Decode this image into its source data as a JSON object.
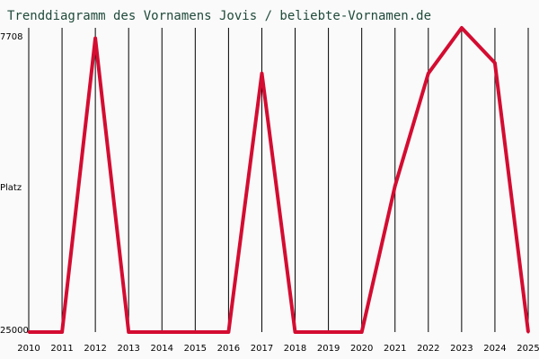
{
  "chart_data": {
    "type": "line",
    "title": "Trenddiagramm des Vornamens Jovis / beliebte-Vornamen.de",
    "ylabel": "Platz",
    "y_top_label": "7708",
    "y_bottom_label": "25000",
    "ylim": [
      25000,
      7708
    ],
    "x": [
      "2010",
      "2011",
      "2012",
      "2013",
      "2014",
      "2015",
      "2016",
      "2017",
      "2018",
      "2019",
      "2020",
      "2021",
      "2022",
      "2023",
      "2024",
      "2025"
    ],
    "series": [
      {
        "values": [
          25000,
          25000,
          8300,
          25000,
          25000,
          25000,
          25000,
          10300,
          25000,
          25000,
          25000,
          16700,
          10300,
          7708,
          9700,
          25000
        ]
      }
    ],
    "colors": {
      "line": "#d40c31",
      "grid": "#000000",
      "background": "#fafafa",
      "title": "#1f4a3a"
    },
    "grid": "vertical"
  }
}
